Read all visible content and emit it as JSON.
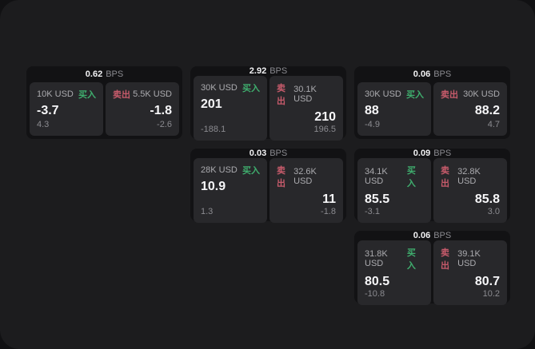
{
  "labels": {
    "bps": "BPS",
    "buy": "买入",
    "sell": "卖出"
  },
  "colors": {
    "screen_bg": "#1c1c1e",
    "card_bg": "#121214",
    "panel_bg": "#28282b",
    "buy_accent": "#3fae6e",
    "sell_accent": "#c75b6b",
    "text_primary": "#f7f7f9",
    "text_muted": "#8b8b90"
  },
  "cards": [
    {
      "bps": "0.62",
      "buy": {
        "size": "10K USD",
        "value": "-3.7",
        "sub": "4.3"
      },
      "sell": {
        "size": "5.5K USD",
        "value": "-1.8",
        "sub": "-2.6"
      }
    },
    {
      "bps": "2.92",
      "buy": {
        "size": "30K USD",
        "value": "201",
        "sub": "-188.1"
      },
      "sell": {
        "size": "30.1K USD",
        "value": "210",
        "sub": "196.5"
      }
    },
    {
      "bps": "0.06",
      "buy": {
        "size": "30K USD",
        "value": "88",
        "sub": "-4.9"
      },
      "sell": {
        "size": "30K USD",
        "value": "88.2",
        "sub": "4.7"
      }
    },
    {
      "bps": "0.03",
      "buy": {
        "size": "28K USD",
        "value": "10.9",
        "sub": "1.3"
      },
      "sell": {
        "size": "32.6K USD",
        "value": "11",
        "sub": "-1.8"
      }
    },
    {
      "bps": "0.09",
      "buy": {
        "size": "34.1K USD",
        "value": "85.5",
        "sub": "-3.1"
      },
      "sell": {
        "size": "32.8K USD",
        "value": "85.8",
        "sub": "3.0"
      }
    },
    {
      "bps": "0.06",
      "buy": {
        "size": "31.8K USD",
        "value": "80.5",
        "sub": "-10.8"
      },
      "sell": {
        "size": "39.1K USD",
        "value": "80.7",
        "sub": "10.2"
      }
    }
  ]
}
